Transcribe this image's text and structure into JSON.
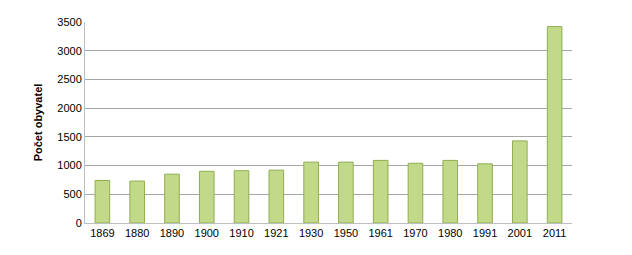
{
  "chart_data": {
    "type": "bar",
    "y_label": "Počet obyvatel",
    "categories": [
      "1869",
      "1880",
      "1890",
      "1900",
      "1910",
      "1921",
      "1930",
      "1950",
      "1961",
      "1970",
      "1980",
      "1991",
      "2001",
      "2011"
    ],
    "values": [
      740,
      730,
      850,
      900,
      910,
      920,
      1060,
      1060,
      1090,
      1040,
      1090,
      1030,
      1430,
      3420
    ],
    "color": "#c2d98a",
    "ylim": [
      0,
      3500
    ],
    "yticks": [
      0,
      500,
      1000,
      1500,
      2000,
      2500,
      3000,
      3500
    ],
    "grid": true
  }
}
